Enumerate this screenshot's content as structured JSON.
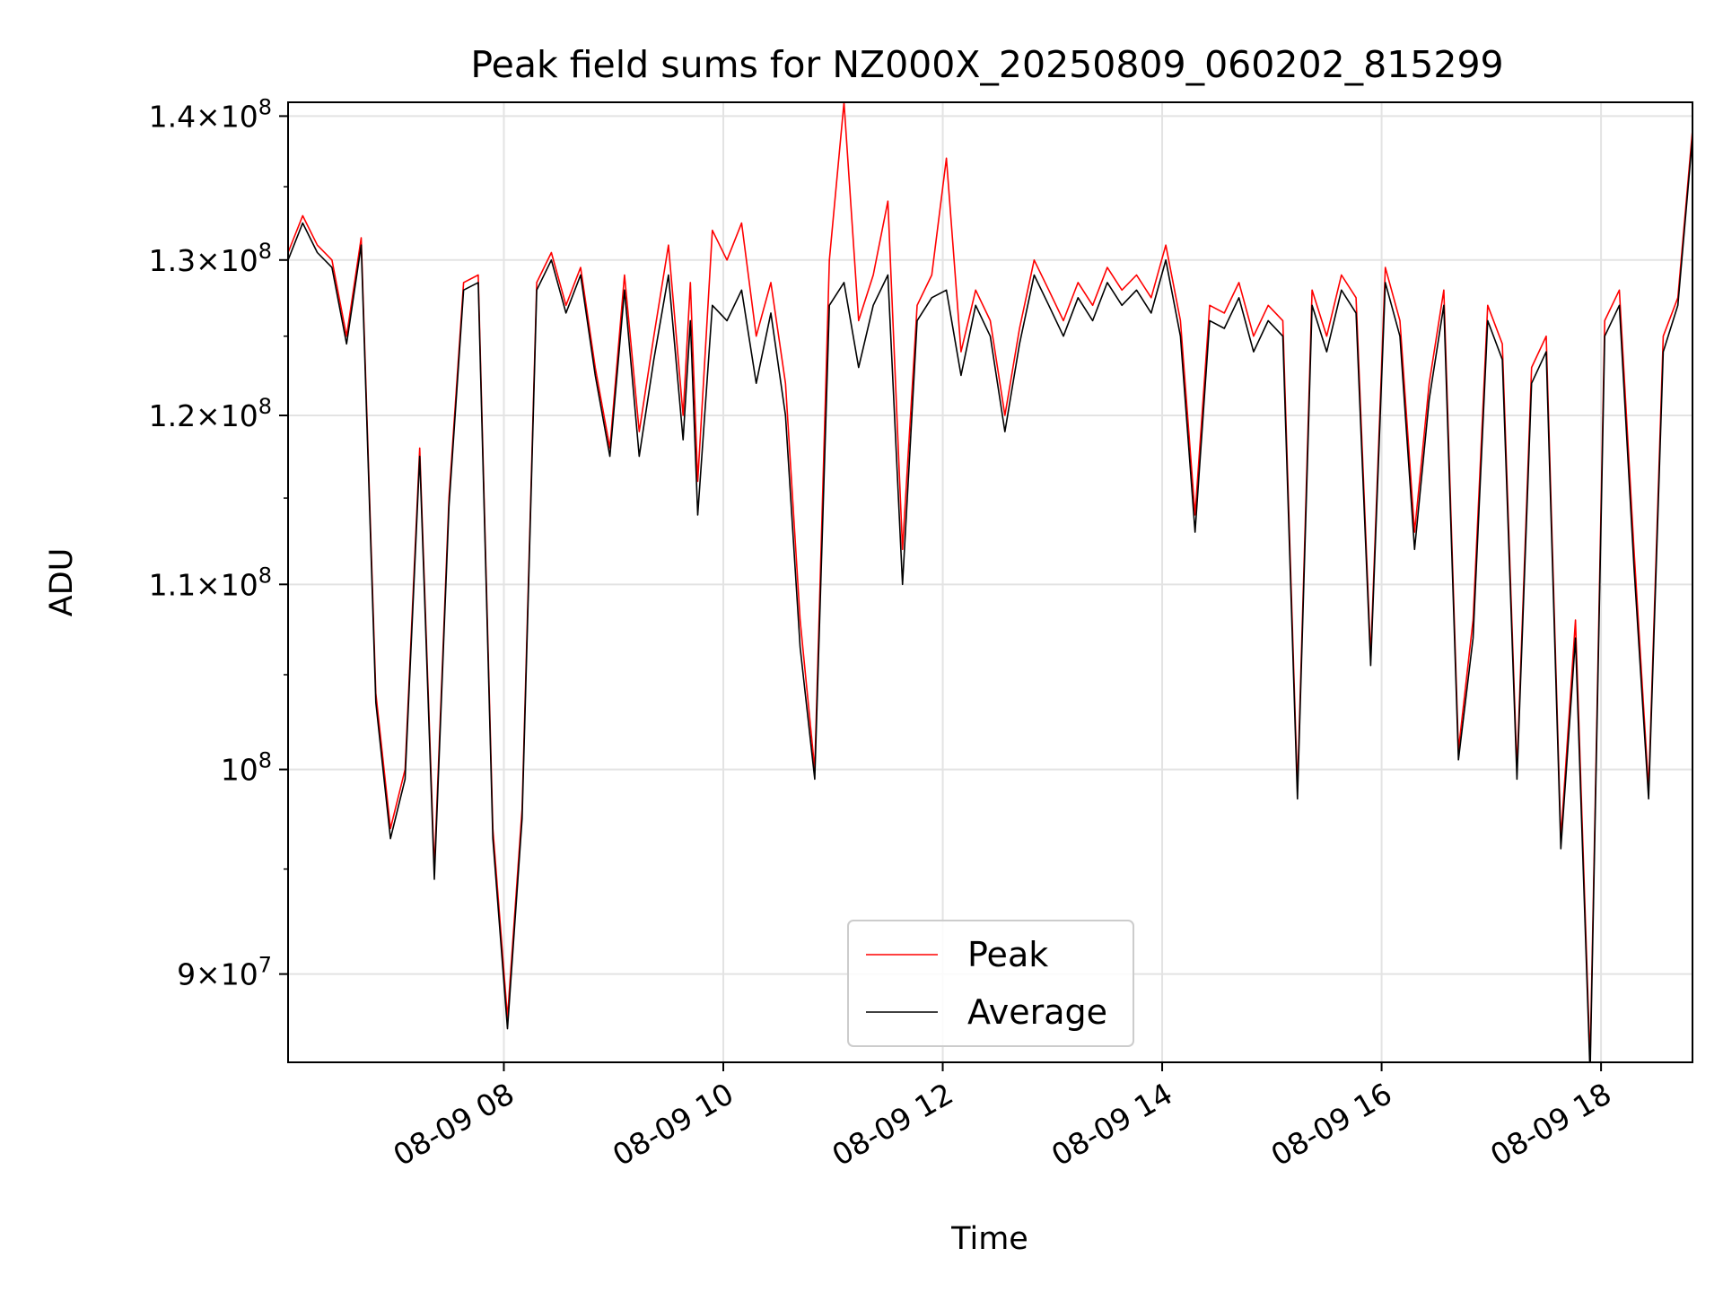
{
  "chart_data": {
    "type": "line",
    "title": "Peak field sums for NZ000X_20250809_060202_815299",
    "xlabel": "Time",
    "ylabel": "ADU",
    "y_scale": "log",
    "ylim": [
      86000000,
      141000000
    ],
    "xlim": [
      "2025-08-09 06:02",
      "2025-08-09 18:50"
    ],
    "grid": true,
    "legend_position": "lower center",
    "x_ticks": [
      {
        "value": "2025-08-09 08:00",
        "label": "08-09 08"
      },
      {
        "value": "2025-08-09 10:00",
        "label": "08-09 10"
      },
      {
        "value": "2025-08-09 12:00",
        "label": "08-09 12"
      },
      {
        "value": "2025-08-09 14:00",
        "label": "08-09 14"
      },
      {
        "value": "2025-08-09 16:00",
        "label": "08-09 16"
      },
      {
        "value": "2025-08-09 18:00",
        "label": "08-09 18"
      }
    ],
    "y_ticks": [
      {
        "value": 90000000,
        "mantissa": "9",
        "exponent": "7"
      },
      {
        "value": 100000000,
        "mantissa": "",
        "exponent": "8"
      },
      {
        "value": 110000000,
        "mantissa": "1.1",
        "exponent": "8"
      },
      {
        "value": 120000000,
        "mantissa": "1.2",
        "exponent": "8"
      },
      {
        "value": 130000000,
        "mantissa": "1.3",
        "exponent": "8"
      },
      {
        "value": 140000000,
        "mantissa": "1.4",
        "exponent": "8"
      }
    ],
    "series": [
      {
        "name": "Peak",
        "color": "#ff0000",
        "x": [
          "2025-08-09 06:02",
          "2025-08-09 06:10",
          "2025-08-09 06:18",
          "2025-08-09 06:26",
          "2025-08-09 06:34",
          "2025-08-09 06:42",
          "2025-08-09 06:50",
          "2025-08-09 06:58",
          "2025-08-09 07:06",
          "2025-08-09 07:14",
          "2025-08-09 07:22",
          "2025-08-09 07:30",
          "2025-08-09 07:38",
          "2025-08-09 07:46",
          "2025-08-09 07:54",
          "2025-08-09 08:02",
          "2025-08-09 08:10",
          "2025-08-09 08:18",
          "2025-08-09 08:26",
          "2025-08-09 08:34",
          "2025-08-09 08:42",
          "2025-08-09 08:50",
          "2025-08-09 08:58",
          "2025-08-09 09:06",
          "2025-08-09 09:14",
          "2025-08-09 09:22",
          "2025-08-09 09:30",
          "2025-08-09 09:38",
          "2025-08-09 09:42",
          "2025-08-09 09:46",
          "2025-08-09 09:54",
          "2025-08-09 10:02",
          "2025-08-09 10:10",
          "2025-08-09 10:18",
          "2025-08-09 10:26",
          "2025-08-09 10:34",
          "2025-08-09 10:42",
          "2025-08-09 10:50",
          "2025-08-09 10:58",
          "2025-08-09 11:06",
          "2025-08-09 11:14",
          "2025-08-09 11:22",
          "2025-08-09 11:30",
          "2025-08-09 11:38",
          "2025-08-09 11:46",
          "2025-08-09 11:54",
          "2025-08-09 12:02",
          "2025-08-09 12:10",
          "2025-08-09 12:18",
          "2025-08-09 12:26",
          "2025-08-09 12:34",
          "2025-08-09 12:42",
          "2025-08-09 12:50",
          "2025-08-09 12:58",
          "2025-08-09 13:06",
          "2025-08-09 13:14",
          "2025-08-09 13:22",
          "2025-08-09 13:30",
          "2025-08-09 13:38",
          "2025-08-09 13:46",
          "2025-08-09 13:54",
          "2025-08-09 14:02",
          "2025-08-09 14:10",
          "2025-08-09 14:18",
          "2025-08-09 14:26",
          "2025-08-09 14:34",
          "2025-08-09 14:42",
          "2025-08-09 14:50",
          "2025-08-09 14:58",
          "2025-08-09 15:06",
          "2025-08-09 15:14",
          "2025-08-09 15:22",
          "2025-08-09 15:30",
          "2025-08-09 15:38",
          "2025-08-09 15:46",
          "2025-08-09 15:54",
          "2025-08-09 16:02",
          "2025-08-09 16:10",
          "2025-08-09 16:18",
          "2025-08-09 16:26",
          "2025-08-09 16:34",
          "2025-08-09 16:42",
          "2025-08-09 16:50",
          "2025-08-09 16:58",
          "2025-08-09 17:06",
          "2025-08-09 17:14",
          "2025-08-09 17:22",
          "2025-08-09 17:30",
          "2025-08-09 17:38",
          "2025-08-09 17:46",
          "2025-08-09 17:54",
          "2025-08-09 18:02",
          "2025-08-09 18:10",
          "2025-08-09 18:18",
          "2025-08-09 18:26",
          "2025-08-09 18:34",
          "2025-08-09 18:42",
          "2025-08-09 18:50"
        ],
        "y": [
          130500000,
          133000000,
          131000000,
          130000000,
          125000000,
          131500000,
          104000000,
          97000000,
          100000000,
          118000000,
          95000000,
          115000000,
          128500000,
          129000000,
          97000000,
          88000000,
          98000000,
          128500000,
          130500000,
          127000000,
          129500000,
          123000000,
          118000000,
          129000000,
          119000000,
          125000000,
          131000000,
          120000000,
          128500000,
          116000000,
          132000000,
          130000000,
          132500000,
          125000000,
          128500000,
          122000000,
          108000000,
          100000000,
          130000000,
          141000000,
          126000000,
          129000000,
          134000000,
          112000000,
          127000000,
          129000000,
          137000000,
          124000000,
          128000000,
          126000000,
          120000000,
          125500000,
          130000000,
          128000000,
          126000000,
          128500000,
          127000000,
          129500000,
          128000000,
          129000000,
          127500000,
          131000000,
          126000000,
          114000000,
          127000000,
          126500000,
          128500000,
          125000000,
          127000000,
          126000000,
          99000000,
          128000000,
          125000000,
          129000000,
          127500000,
          106000000,
          129500000,
          126000000,
          113000000,
          122000000,
          128000000,
          101000000,
          108000000,
          127000000,
          124500000,
          100000000,
          123000000,
          125000000,
          96500000,
          108000000,
          86000000,
          126000000,
          128000000,
          112000000,
          99000000,
          125000000,
          127500000,
          139000000
        ]
      },
      {
        "name": "Average",
        "color": "#000000",
        "x": [
          "2025-08-09 06:02",
          "2025-08-09 06:10",
          "2025-08-09 06:18",
          "2025-08-09 06:26",
          "2025-08-09 06:34",
          "2025-08-09 06:42",
          "2025-08-09 06:50",
          "2025-08-09 06:58",
          "2025-08-09 07:06",
          "2025-08-09 07:14",
          "2025-08-09 07:22",
          "2025-08-09 07:30",
          "2025-08-09 07:38",
          "2025-08-09 07:46",
          "2025-08-09 07:54",
          "2025-08-09 08:02",
          "2025-08-09 08:10",
          "2025-08-09 08:18",
          "2025-08-09 08:26",
          "2025-08-09 08:34",
          "2025-08-09 08:42",
          "2025-08-09 08:50",
          "2025-08-09 08:58",
          "2025-08-09 09:06",
          "2025-08-09 09:14",
          "2025-08-09 09:22",
          "2025-08-09 09:30",
          "2025-08-09 09:38",
          "2025-08-09 09:42",
          "2025-08-09 09:46",
          "2025-08-09 09:54",
          "2025-08-09 10:02",
          "2025-08-09 10:10",
          "2025-08-09 10:18",
          "2025-08-09 10:26",
          "2025-08-09 10:34",
          "2025-08-09 10:42",
          "2025-08-09 10:50",
          "2025-08-09 10:58",
          "2025-08-09 11:06",
          "2025-08-09 11:14",
          "2025-08-09 11:22",
          "2025-08-09 11:30",
          "2025-08-09 11:38",
          "2025-08-09 11:46",
          "2025-08-09 11:54",
          "2025-08-09 12:02",
          "2025-08-09 12:10",
          "2025-08-09 12:18",
          "2025-08-09 12:26",
          "2025-08-09 12:34",
          "2025-08-09 12:42",
          "2025-08-09 12:50",
          "2025-08-09 12:58",
          "2025-08-09 13:06",
          "2025-08-09 13:14",
          "2025-08-09 13:22",
          "2025-08-09 13:30",
          "2025-08-09 13:38",
          "2025-08-09 13:46",
          "2025-08-09 13:54",
          "2025-08-09 14:02",
          "2025-08-09 14:10",
          "2025-08-09 14:18",
          "2025-08-09 14:26",
          "2025-08-09 14:34",
          "2025-08-09 14:42",
          "2025-08-09 14:50",
          "2025-08-09 14:58",
          "2025-08-09 15:06",
          "2025-08-09 15:14",
          "2025-08-09 15:22",
          "2025-08-09 15:30",
          "2025-08-09 15:38",
          "2025-08-09 15:46",
          "2025-08-09 15:54",
          "2025-08-09 16:02",
          "2025-08-09 16:10",
          "2025-08-09 16:18",
          "2025-08-09 16:26",
          "2025-08-09 16:34",
          "2025-08-09 16:42",
          "2025-08-09 16:50",
          "2025-08-09 16:58",
          "2025-08-09 17:06",
          "2025-08-09 17:14",
          "2025-08-09 17:22",
          "2025-08-09 17:30",
          "2025-08-09 17:38",
          "2025-08-09 17:46",
          "2025-08-09 17:54",
          "2025-08-09 18:02",
          "2025-08-09 18:10",
          "2025-08-09 18:18",
          "2025-08-09 18:26",
          "2025-08-09 18:34",
          "2025-08-09 18:42",
          "2025-08-09 18:50"
        ],
        "y": [
          130000000,
          132500000,
          130500000,
          129500000,
          124500000,
          131000000,
          103500000,
          96500000,
          99500000,
          117500000,
          94500000,
          114500000,
          128000000,
          128500000,
          96500000,
          87500000,
          97500000,
          128000000,
          130000000,
          126500000,
          129000000,
          122500000,
          117500000,
          128000000,
          117500000,
          123500000,
          129000000,
          118500000,
          126000000,
          114000000,
          127000000,
          126000000,
          128000000,
          122000000,
          126500000,
          120000000,
          106500000,
          99500000,
          127000000,
          128500000,
          123000000,
          127000000,
          129000000,
          110000000,
          126000000,
          127500000,
          128000000,
          122500000,
          127000000,
          125000000,
          119000000,
          124500000,
          129000000,
          127000000,
          125000000,
          127500000,
          126000000,
          128500000,
          127000000,
          128000000,
          126500000,
          130000000,
          125000000,
          113000000,
          126000000,
          125500000,
          127500000,
          124000000,
          126000000,
          125000000,
          98500000,
          127000000,
          124000000,
          128000000,
          126500000,
          105500000,
          128500000,
          125000000,
          112000000,
          121000000,
          127000000,
          100500000,
          107000000,
          126000000,
          123500000,
          99500000,
          122000000,
          124000000,
          96000000,
          107000000,
          85500000,
          125000000,
          127000000,
          111000000,
          98500000,
          124000000,
          127000000,
          138500000
        ]
      }
    ]
  }
}
